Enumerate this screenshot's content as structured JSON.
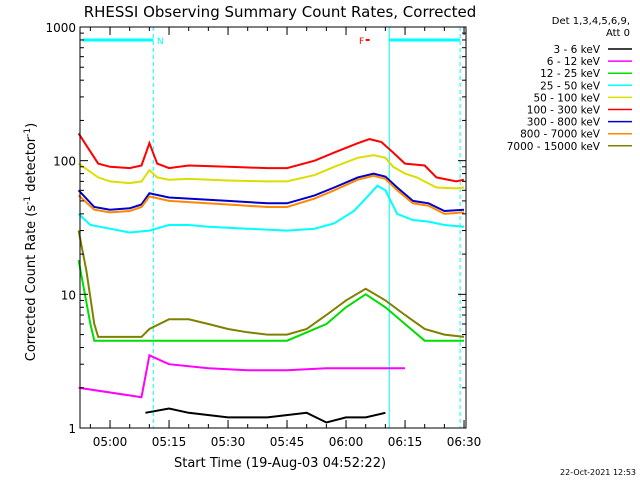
{
  "chart_data": {
    "type": "line",
    "title": "RHESSI Observing Summary Count Rates, Corrected",
    "xlabel": "Start Time (19-Aug-03 04:52:22)",
    "ylabel": "Corrected Count Rate (s⁻¹ detector⁻¹)",
    "ylabel_main": "Corrected Count Rate (s",
    "ylabel_sup1": "-1",
    "ylabel_mid": " detector",
    "ylabel_sup2": "-1",
    "ylabel_end": ")",
    "y_scale": "log",
    "ylim": [
      1,
      1000
    ],
    "xlim": [
      "04:52:22",
      "06:30:30"
    ],
    "x_tick_labels": [
      "05:00",
      "05:15",
      "05:30",
      "05:45",
      "06:00",
      "06:15",
      "06:30"
    ],
    "y_tick_labels": [
      "1",
      "10",
      "100",
      "1000"
    ],
    "legend_header": [
      "Det 1,3,4,5,6,9,",
      "Att 0"
    ],
    "legend_position": "right",
    "series": [
      {
        "name": "3 - 6 keV",
        "color": "#000000",
        "points": [
          [
            "05:09",
            1.3
          ],
          [
            "05:15",
            1.4
          ],
          [
            "05:20",
            1.3
          ],
          [
            "05:30",
            1.2
          ],
          [
            "05:40",
            1.2
          ],
          [
            "05:50",
            1.3
          ],
          [
            "05:55",
            1.1
          ],
          [
            "06:00",
            1.2
          ],
          [
            "06:05",
            1.2
          ],
          [
            "06:10",
            1.3
          ]
        ]
      },
      {
        "name": "6 - 12 keV",
        "color": "#ff00ff",
        "points": [
          [
            "04:52",
            2.0
          ],
          [
            "05:08",
            1.7
          ],
          [
            "05:10",
            3.5
          ],
          [
            "05:15",
            3.0
          ],
          [
            "05:25",
            2.8
          ],
          [
            "05:35",
            2.7
          ],
          [
            "05:45",
            2.7
          ],
          [
            "05:55",
            2.8
          ],
          [
            "06:05",
            2.8
          ],
          [
            "06:15",
            2.8
          ]
        ]
      },
      {
        "name": "12 - 25 keV",
        "color": "#00dd00",
        "points": [
          [
            "04:52",
            18
          ],
          [
            "04:55",
            6
          ],
          [
            "04:56",
            4.5
          ],
          [
            "05:05",
            4.5
          ],
          [
            "05:10",
            4.5
          ],
          [
            "05:15",
            4.5
          ],
          [
            "05:25",
            4.5
          ],
          [
            "05:35",
            4.5
          ],
          [
            "05:45",
            4.5
          ],
          [
            "05:55",
            6
          ],
          [
            "06:00",
            8
          ],
          [
            "06:05",
            10
          ],
          [
            "06:10",
            8
          ],
          [
            "06:15",
            6
          ],
          [
            "06:20",
            4.5
          ],
          [
            "06:30",
            4.5
          ]
        ]
      },
      {
        "name": "25 - 50 keV",
        "color": "#00ffff",
        "points": [
          [
            "04:52",
            40
          ],
          [
            "04:55",
            33
          ],
          [
            "05:00",
            31
          ],
          [
            "05:05",
            29
          ],
          [
            "05:10",
            30
          ],
          [
            "05:15",
            33
          ],
          [
            "05:20",
            33
          ],
          [
            "05:25",
            32
          ],
          [
            "05:35",
            31
          ],
          [
            "05:45",
            30
          ],
          [
            "05:52",
            31
          ],
          [
            "05:57",
            34
          ],
          [
            "06:02",
            42
          ],
          [
            "06:05",
            52
          ],
          [
            "06:08",
            65
          ],
          [
            "06:10",
            60
          ],
          [
            "06:13",
            40
          ],
          [
            "06:17",
            36
          ],
          [
            "06:21",
            35
          ],
          [
            "06:25",
            33
          ],
          [
            "06:30",
            32
          ]
        ]
      },
      {
        "name": "50 - 100 keV",
        "color": "#dddd00",
        "points": [
          [
            "04:52",
            95
          ],
          [
            "04:57",
            75
          ],
          [
            "05:00",
            70
          ],
          [
            "05:05",
            68
          ],
          [
            "05:08",
            70
          ],
          [
            "05:10",
            85
          ],
          [
            "05:12",
            75
          ],
          [
            "05:15",
            72
          ],
          [
            "05:20",
            73
          ],
          [
            "05:30",
            71
          ],
          [
            "05:40",
            70
          ],
          [
            "05:45",
            70
          ],
          [
            "05:52",
            78
          ],
          [
            "05:57",
            90
          ],
          [
            "06:03",
            105
          ],
          [
            "06:07",
            110
          ],
          [
            "06:10",
            105
          ],
          [
            "06:12",
            90
          ],
          [
            "06:15",
            80
          ],
          [
            "06:18",
            75
          ],
          [
            "06:23",
            63
          ],
          [
            "06:28",
            62
          ],
          [
            "06:30",
            63
          ]
        ]
      },
      {
        "name": "100 - 300 keV",
        "color": "#ff0000",
        "points": [
          [
            "04:52",
            160
          ],
          [
            "04:57",
            95
          ],
          [
            "05:00",
            90
          ],
          [
            "05:05",
            88
          ],
          [
            "05:08",
            92
          ],
          [
            "05:10",
            135
          ],
          [
            "05:12",
            95
          ],
          [
            "05:15",
            88
          ],
          [
            "05:20",
            92
          ],
          [
            "05:30",
            90
          ],
          [
            "05:40",
            88
          ],
          [
            "05:45",
            88
          ],
          [
            "05:52",
            100
          ],
          [
            "05:57",
            115
          ],
          [
            "06:03",
            135
          ],
          [
            "06:06",
            145
          ],
          [
            "06:09",
            138
          ],
          [
            "06:12",
            115
          ],
          [
            "06:15",
            95
          ],
          [
            "06:20",
            92
          ],
          [
            "06:23",
            75
          ],
          [
            "06:28",
            70
          ],
          [
            "06:30",
            72
          ]
        ]
      },
      {
        "name": "300 - 800 keV",
        "color": "#0000cc",
        "points": [
          [
            "04:52",
            60
          ],
          [
            "04:56",
            45
          ],
          [
            "05:00",
            43
          ],
          [
            "05:05",
            44
          ],
          [
            "05:08",
            47
          ],
          [
            "05:10",
            57
          ],
          [
            "05:15",
            53
          ],
          [
            "05:20",
            52
          ],
          [
            "05:30",
            50
          ],
          [
            "05:40",
            48
          ],
          [
            "05:45",
            48
          ],
          [
            "05:52",
            55
          ],
          [
            "05:57",
            63
          ],
          [
            "06:03",
            75
          ],
          [
            "06:07",
            80
          ],
          [
            "06:10",
            76
          ],
          [
            "06:13",
            63
          ],
          [
            "06:17",
            50
          ],
          [
            "06:21",
            48
          ],
          [
            "06:25",
            42
          ],
          [
            "06:30",
            43
          ]
        ]
      },
      {
        "name": "800 - 7000 keV",
        "color": "#ff8800",
        "points": [
          [
            "04:52",
            55
          ],
          [
            "04:56",
            43
          ],
          [
            "05:00",
            41
          ],
          [
            "05:05",
            42
          ],
          [
            "05:08",
            45
          ],
          [
            "05:10",
            54
          ],
          [
            "05:15",
            50
          ],
          [
            "05:20",
            49
          ],
          [
            "05:30",
            47
          ],
          [
            "05:40",
            45
          ],
          [
            "05:45",
            45
          ],
          [
            "05:52",
            52
          ],
          [
            "05:57",
            60
          ],
          [
            "06:03",
            72
          ],
          [
            "06:07",
            77
          ],
          [
            "06:10",
            73
          ],
          [
            "06:13",
            60
          ],
          [
            "06:17",
            48
          ],
          [
            "06:21",
            46
          ],
          [
            "06:25",
            40
          ],
          [
            "06:30",
            41
          ]
        ]
      },
      {
        "name": "7000 - 15000 keV",
        "color": "#808000",
        "points": [
          [
            "04:52",
            30
          ],
          [
            "04:54",
            15
          ],
          [
            "04:56",
            6
          ],
          [
            "04:57",
            4.8
          ],
          [
            "05:05",
            4.8
          ],
          [
            "05:08",
            4.8
          ],
          [
            "05:10",
            5.5
          ],
          [
            "05:15",
            6.5
          ],
          [
            "05:20",
            6.5
          ],
          [
            "05:25",
            6.0
          ],
          [
            "05:30",
            5.5
          ],
          [
            "05:35",
            5.2
          ],
          [
            "05:40",
            5.0
          ],
          [
            "05:45",
            5.0
          ],
          [
            "05:50",
            5.5
          ],
          [
            "05:55",
            7
          ],
          [
            "06:00",
            9
          ],
          [
            "06:05",
            11
          ],
          [
            "06:10",
            9
          ],
          [
            "06:15",
            7
          ],
          [
            "06:20",
            5.5
          ],
          [
            "06:25",
            5.0
          ],
          [
            "06:30",
            4.8
          ]
        ]
      }
    ],
    "flag_lines": [
      {
        "label": "N",
        "color": "#00ffff",
        "y_level": 800,
        "segments": [
          [
            "04:53",
            "05:11"
          ],
          [
            "06:11",
            "06:29"
          ]
        ]
      },
      {
        "label": "F",
        "color": "#ff0000",
        "y_level": 800,
        "segments": [
          [
            "06:05",
            "06:06"
          ]
        ]
      }
    ],
    "vertical_lines": [
      {
        "time": "05:11",
        "color": "#00ffff",
        "style": "dashed"
      },
      {
        "time": "06:11",
        "color": "#00ffff",
        "style": "solid"
      },
      {
        "time": "06:29",
        "color": "#00ffff",
        "style": "dashed"
      }
    ],
    "timestamp": "22-Oct-2021 12:53"
  }
}
